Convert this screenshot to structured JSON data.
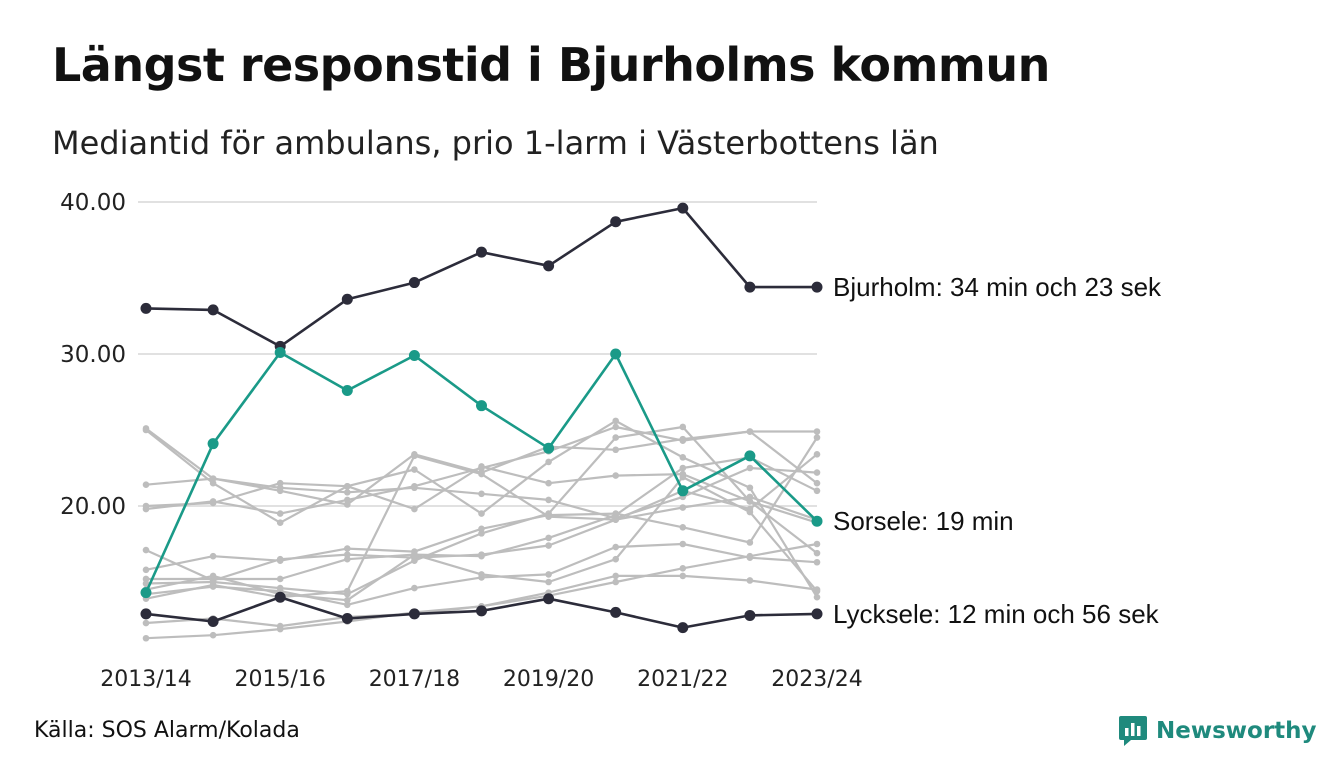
{
  "header": {
    "title": "Längst responstid i Bjurholms kommun",
    "subtitle": "Mediantid för ambulans, prio 1-larm i Västerbottens län"
  },
  "footer": {
    "source": "Källa: SOS Alarm/Kolada",
    "brand": "Newsworthy"
  },
  "colors": {
    "highlight_dark": "#2c2c3a",
    "highlight_green": "#1a9a88",
    "background_series": "#bdbdbd",
    "grid": "#e1e1e1",
    "brand": "#1f8a7d"
  },
  "chart_data": {
    "type": "line",
    "x": [
      "2013/14",
      "2014/15",
      "2015/16",
      "2016/17",
      "2017/18",
      "2018/19",
      "2019/20",
      "2020/21",
      "2021/22",
      "2022/23",
      "2023/24"
    ],
    "x_tick_labels": [
      "2013/14",
      "2015/16",
      "2017/18",
      "2019/20",
      "2021/22",
      "2023/24"
    ],
    "yticks": [
      "20.00",
      "30.00",
      "40.00"
    ],
    "ylim": [
      12,
      40.5
    ],
    "grid": true,
    "series": [
      {
        "name": "Bjurholm",
        "role": "highlight-dark",
        "label": "Bjurholm: 34 min och 23 sek",
        "values": [
          33.0,
          32.9,
          30.5,
          33.6,
          34.7,
          36.7,
          35.8,
          38.7,
          39.6,
          34.4,
          34.4
        ]
      },
      {
        "name": "Sorsele",
        "role": "highlight-green",
        "label": "Sorsele: 19 min",
        "values": [
          14.3,
          24.1,
          30.1,
          27.6,
          29.9,
          26.6,
          23.8,
          30.0,
          21.0,
          23.3,
          19.0
        ]
      },
      {
        "name": "Lycksele",
        "role": "highlight-dark",
        "label": "Lycksele: 12 min och 56 sek",
        "values": [
          12.9,
          12.4,
          14.0,
          12.6,
          12.9,
          13.1,
          13.9,
          13.0,
          12.0,
          12.8,
          12.9
        ]
      },
      {
        "role": "background",
        "values": [
          25.0,
          21.5,
          18.9,
          21.3,
          22.4,
          19.5,
          22.9,
          25.6,
          23.2,
          21.2,
          14.0
        ]
      },
      {
        "role": "background",
        "values": [
          25.1,
          21.8,
          21.0,
          20.1,
          23.4,
          22.2,
          23.9,
          23.7,
          24.4,
          24.9,
          24.9
        ]
      },
      {
        "role": "background",
        "values": [
          20.0,
          20.2,
          21.5,
          21.3,
          19.8,
          22.6,
          21.5,
          22.0,
          22.1,
          20.3,
          18.9
        ]
      },
      {
        "role": "background",
        "values": [
          19.8,
          20.3,
          19.5,
          20.4,
          21.3,
          22.5,
          23.6,
          25.2,
          24.3,
          24.9,
          21.5
        ]
      },
      {
        "role": "background",
        "values": [
          21.4,
          21.8,
          21.2,
          20.9,
          21.2,
          20.8,
          20.4,
          19.2,
          20.6,
          22.5,
          22.2
        ]
      },
      {
        "role": "background",
        "values": [
          17.1,
          15.1,
          16.5,
          16.8,
          16.6,
          16.8,
          17.4,
          19.1,
          21.0,
          19.8,
          23.4
        ]
      },
      {
        "role": "background",
        "values": [
          15.8,
          16.7,
          16.4,
          17.2,
          17.0,
          18.5,
          19.4,
          19.5,
          18.6,
          17.6,
          24.5
        ]
      },
      {
        "role": "background",
        "values": [
          15.2,
          15.2,
          15.2,
          16.5,
          16.8,
          16.7,
          17.9,
          19.4,
          22.5,
          23.2,
          21.0
        ]
      },
      {
        "role": "background",
        "values": [
          14.9,
          15.0,
          14.6,
          14.2,
          16.4,
          18.2,
          19.5,
          24.5,
          25.2,
          20.3,
          16.9
        ]
      },
      {
        "role": "background",
        "values": [
          14.2,
          14.7,
          14.4,
          13.5,
          14.6,
          15.3,
          15.5,
          17.3,
          17.5,
          16.6,
          16.3
        ]
      },
      {
        "role": "background",
        "values": [
          14.5,
          15.4,
          14.2,
          13.8,
          16.8,
          15.5,
          15.0,
          16.5,
          21.9,
          19.6,
          14.4
        ]
      },
      {
        "role": "background",
        "values": [
          13.9,
          14.8,
          14.0,
          14.4,
          23.3,
          22.1,
          19.3,
          19.1,
          19.9,
          20.6,
          19.1
        ]
      },
      {
        "role": "background",
        "values": [
          12.3,
          12.6,
          12.1,
          12.7,
          12.9,
          13.4,
          14.3,
          15.4,
          15.4,
          15.1,
          14.5
        ]
      },
      {
        "role": "background",
        "values": [
          11.3,
          11.5,
          11.9,
          12.4,
          13.0,
          13.4,
          14.1,
          15.0,
          15.9,
          16.7,
          17.5
        ]
      }
    ]
  }
}
